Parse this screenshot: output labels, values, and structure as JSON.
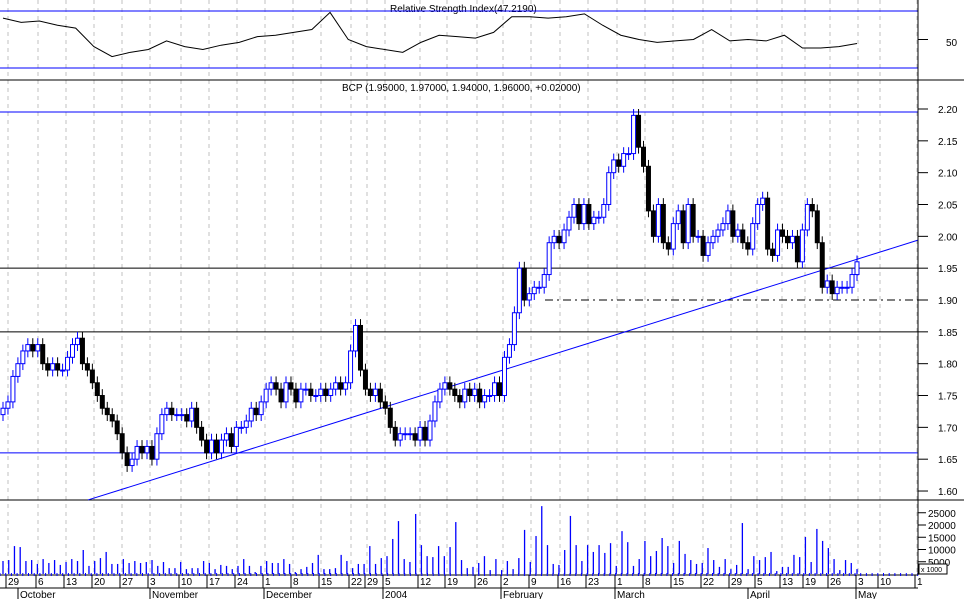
{
  "chart_data": [
    {
      "type": "line",
      "title": "Relative Strength Index(47.2190)",
      "y_tick_labels": [
        "50"
      ],
      "levels": [
        70,
        30
      ],
      "values": [
        65,
        62,
        63,
        60,
        58,
        45,
        38,
        41,
        43,
        49,
        45,
        43,
        46,
        48,
        52,
        53,
        55,
        57,
        69,
        50,
        45,
        43,
        41,
        48,
        53,
        52,
        51,
        55,
        66,
        66,
        65,
        66,
        68,
        60,
        53,
        50,
        48,
        49,
        50,
        57,
        49,
        50,
        49,
        53,
        44,
        44,
        45,
        47.2
      ]
    },
    {
      "type": "candlestick",
      "title": "BCP (1.95000, 1.97000, 1.94000, 1.96000, +0.02000)",
      "ylim": [
        1.58,
        2.23
      ],
      "y_tick_labels": [
        "2.20",
        "2.15",
        "2.10",
        "2.05",
        "2.00",
        "1.95",
        "1.90",
        "1.85",
        "1.80",
        "1.75",
        "1.70",
        "1.65",
        "1.60"
      ],
      "horizontal_levels": [
        2.2,
        1.95,
        1.85,
        1.66
      ],
      "dashed_level": 1.9,
      "trendline": [
        1.586,
        1.994
      ],
      "close": [
        1.73,
        1.74,
        1.78,
        1.8,
        1.82,
        1.83,
        1.82,
        1.83,
        1.8,
        1.79,
        1.8,
        1.79,
        1.79,
        1.81,
        1.83,
        1.84,
        1.8,
        1.79,
        1.77,
        1.75,
        1.73,
        1.72,
        1.71,
        1.69,
        1.66,
        1.64,
        1.65,
        1.67,
        1.66,
        1.67,
        1.65,
        1.69,
        1.72,
        1.73,
        1.72,
        1.72,
        1.72,
        1.71,
        1.73,
        1.7,
        1.68,
        1.66,
        1.68,
        1.66,
        1.68,
        1.69,
        1.67,
        1.7,
        1.7,
        1.71,
        1.73,
        1.72,
        1.74,
        1.76,
        1.77,
        1.76,
        1.74,
        1.77,
        1.76,
        1.74,
        1.76,
        1.76,
        1.75,
        1.75,
        1.76,
        1.75,
        1.76,
        1.77,
        1.76,
        1.77,
        1.82,
        1.86,
        1.79,
        1.76,
        1.75,
        1.76,
        1.74,
        1.73,
        1.7,
        1.68,
        1.69,
        1.69,
        1.69,
        1.68,
        1.7,
        1.68,
        1.71,
        1.74,
        1.76,
        1.77,
        1.76,
        1.75,
        1.74,
        1.76,
        1.75,
        1.76,
        1.74,
        1.75,
        1.75,
        1.77,
        1.75,
        1.81,
        1.83,
        1.88,
        1.95,
        1.9,
        1.91,
        1.92,
        1.92,
        1.94,
        1.99,
        2.0,
        1.99,
        2.01,
        2.03,
        2.05,
        2.02,
        2.05,
        2.02,
        2.03,
        2.03,
        2.05,
        2.1,
        2.12,
        2.11,
        2.13,
        2.13,
        2.19,
        2.14,
        2.11,
        2.04,
        2.0,
        2.05,
        1.99,
        1.98,
        2.02,
        2.04,
        1.99,
        2.05,
        2.0,
        2.0,
        1.97,
        1.99,
        2.0,
        2.01,
        2.02,
        2.04,
        2.0,
        2.01,
        1.99,
        1.98,
        2.02,
        2.05,
        2.06,
        1.98,
        1.97,
        2.01,
        2.0,
        1.99,
        2.0,
        1.96,
        2.01,
        2.05,
        2.04,
        1.99,
        1.92,
        1.93,
        1.91,
        1.92,
        1.92,
        1.92,
        1.94,
        1.96
      ]
    },
    {
      "type": "bar",
      "ylabel": "x 1000",
      "y_tick_labels": [
        "25000",
        "20000",
        "15000",
        "10000",
        "5000"
      ],
      "values": [
        5.3,
        5.7,
        11.4,
        11,
        5.3,
        5.7,
        4.1,
        6.1,
        4.5,
        5.7,
        3.7,
        4.9,
        6.1,
        5.3,
        9.8,
        3.3,
        5.3,
        6.5,
        9,
        4.1,
        4.1,
        6.1,
        4.5,
        5.3,
        4.5,
        4.9,
        5.7,
        3.3,
        4.9,
        2.4,
        2.4,
        4.9,
        2,
        2.4,
        2.4,
        5.3,
        4.5,
        2,
        3.7,
        3.3,
        2,
        3.3,
        6.1,
        3.3,
        0.8,
        3.3,
        5.3,
        4.5,
        4.5,
        6.1,
        4.1,
        0.8,
        2,
        2.9,
        4.5,
        7.8,
        2,
        2,
        2.4,
        7.8,
        5.3,
        2.4,
        4.1,
        4.1,
        11.4,
        4.1,
        6.5,
        7.3,
        14.3,
        21.6,
        6.1,
        4.9,
        24.5,
        11.8,
        7.3,
        6.9,
        11.4,
        7.3,
        11,
        21.2,
        5.7,
        2.4,
        2.9,
        4.5,
        7.3,
        1.6,
        6.1,
        1.6,
        5.3,
        2,
        6.5,
        18,
        4.9,
        15.5,
        27.7,
        11.8,
        4.1,
        3.7,
        9.8,
        23.7,
        11.8,
        5.3,
        11.8,
        9,
        11.8,
        8.6,
        12.6,
        3.3,
        17.5,
        13,
        3.3,
        6.1,
        13.5,
        7.3,
        9.4,
        14.7,
        11.4,
        4.5,
        13.5,
        8.2,
        5.7,
        4.1,
        4.5,
        10.6,
        5.7,
        2.9,
        6.1,
        2,
        3.7,
        20.8,
        2,
        7.3,
        5.7,
        6.9,
        9,
        1.2,
        2.9,
        2.9,
        7.8,
        6.9,
        15.1,
        4.9,
        18.4,
        13.5,
        10.6,
        6.1,
        1.6,
        5.7,
        4.5,
        2
      ]
    }
  ],
  "x_axis": {
    "day_labels": [
      "29",
      "6",
      "13",
      "20",
      "27",
      "3",
      "10",
      "17",
      "24",
      "1",
      "8",
      "15",
      "22",
      "29",
      "5",
      "12",
      "19",
      "26",
      "2",
      "9",
      "16",
      "23",
      "1",
      "8",
      "15",
      "22",
      "29",
      "5",
      "13",
      "19",
      "26",
      "3",
      "10",
      "1"
    ],
    "month_labels": [
      "October",
      "November",
      "December",
      "2004",
      "February",
      "March",
      "April",
      "May"
    ]
  },
  "colors": {
    "up": "#0000ff",
    "down": "#000000",
    "lines": "#0000ff",
    "grid": "#c0c0c0"
  }
}
